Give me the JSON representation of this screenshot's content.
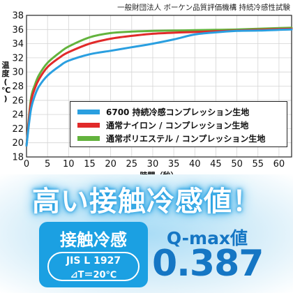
{
  "source_note": "一般財団法人 ボーケン品質評価機構 持続冷感性試験",
  "chart_data": {
    "type": "line",
    "xlabel": "時間（秒）",
    "ylabel": [
      "温",
      "度",
      "(",
      "℃",
      ")"
    ],
    "xlim": [
      0,
      63
    ],
    "ylim": [
      18,
      38
    ],
    "x_ticks": [
      0,
      5,
      10,
      15,
      20,
      25,
      30,
      35,
      40,
      45,
      50,
      55,
      60
    ],
    "y_ticks": [
      18,
      20,
      22,
      24,
      26,
      28,
      30,
      32,
      34,
      36,
      38
    ],
    "grid": true,
    "legend_position": "lower-right",
    "series": [
      {
        "name": "6700 持続冷感コンプレッション生地",
        "color": "#2a9fe0",
        "points": [
          [
            0,
            19.6
          ],
          [
            1,
            24.5
          ],
          [
            2,
            26.7
          ],
          [
            3,
            28.0
          ],
          [
            5,
            29.5
          ],
          [
            8,
            30.9
          ],
          [
            10,
            31.6
          ],
          [
            15,
            32.5
          ],
          [
            20,
            33.0
          ],
          [
            25,
            33.5
          ],
          [
            30,
            34.0
          ],
          [
            35,
            34.6
          ],
          [
            40,
            35.3
          ],
          [
            45,
            35.6
          ],
          [
            50,
            35.8
          ],
          [
            55,
            35.85
          ],
          [
            60,
            35.95
          ],
          [
            63,
            36.0
          ]
        ]
      },
      {
        "name": "通常ナイロン / コンプレッション生地",
        "color": "#e12a2a",
        "points": [
          [
            0,
            19.6
          ],
          [
            1,
            25.5
          ],
          [
            2,
            27.7
          ],
          [
            3,
            29.0
          ],
          [
            5,
            30.7
          ],
          [
            8,
            32.1
          ],
          [
            10,
            32.8
          ],
          [
            15,
            34.0
          ],
          [
            20,
            34.7
          ],
          [
            25,
            35.1
          ],
          [
            30,
            35.4
          ],
          [
            35,
            35.55
          ],
          [
            40,
            35.65
          ],
          [
            45,
            35.75
          ],
          [
            50,
            35.85
          ],
          [
            55,
            35.95
          ],
          [
            60,
            36.05
          ],
          [
            63,
            36.1
          ]
        ]
      },
      {
        "name": "通常ポリエステル / コンプレッション生地",
        "color": "#63b33d",
        "points": [
          [
            0,
            19.6
          ],
          [
            1,
            26.0
          ],
          [
            2,
            28.2
          ],
          [
            3,
            29.6
          ],
          [
            5,
            31.3
          ],
          [
            8,
            32.8
          ],
          [
            10,
            33.6
          ],
          [
            15,
            34.9
          ],
          [
            20,
            35.5
          ],
          [
            25,
            35.7
          ],
          [
            30,
            35.8
          ],
          [
            35,
            35.85
          ],
          [
            40,
            35.9
          ],
          [
            45,
            35.95
          ],
          [
            50,
            36.0
          ],
          [
            55,
            36.1
          ],
          [
            60,
            36.2
          ],
          [
            63,
            36.25
          ]
        ]
      }
    ]
  },
  "headline": "高い接触冷感値！",
  "feature_box": {
    "title": "接触冷感",
    "condition_1": "JIS L 1927",
    "condition_2": "⊿T＝20℃"
  },
  "qmax": {
    "label": "Q-max値",
    "value": "0.387"
  },
  "colors": {
    "accent_blue": "#1ba0e2",
    "value_blue": "#1576c4"
  }
}
